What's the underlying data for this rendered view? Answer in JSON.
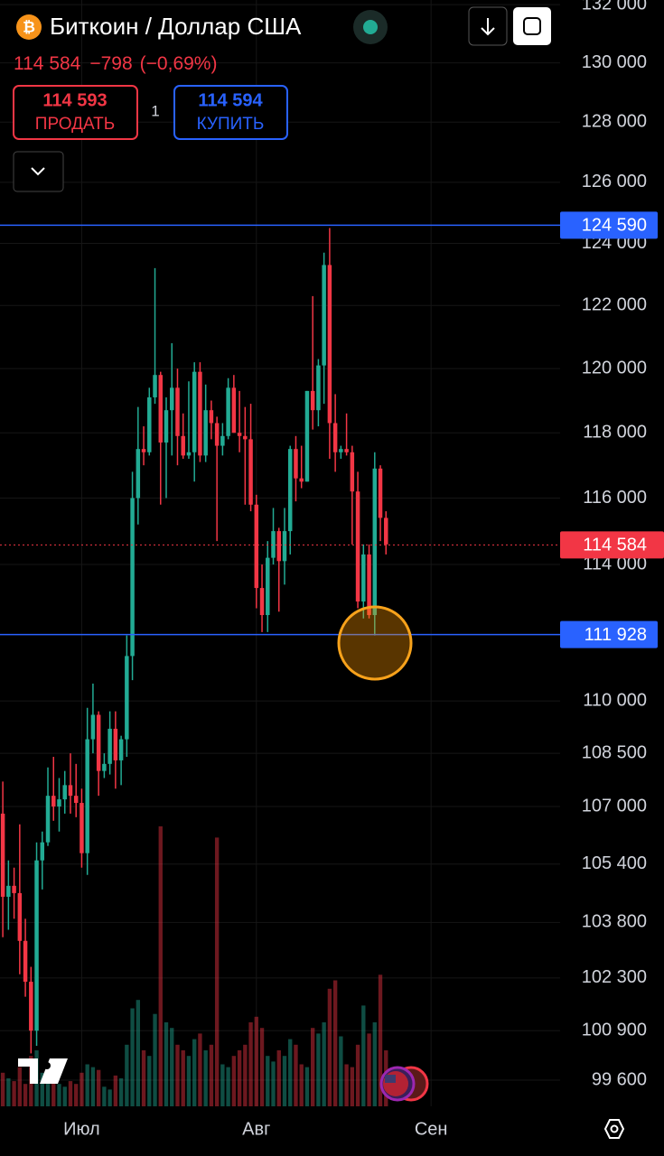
{
  "header": {
    "symbol": "Биткоин / Доллар США",
    "change": "−798",
    "change_pct": "(−0,69%)",
    "sell": {
      "price": "114 593",
      "label": "ПРОДАТЬ"
    },
    "lot": "1",
    "buy": {
      "price": "114 594",
      "label": "КУПИТЬ"
    }
  },
  "chart_data": {
    "type": "candlestick",
    "log_scale": true,
    "grid": true,
    "up_color": "#22ab94",
    "down_color": "#f23645",
    "line_color": "#2962ff",
    "ylim": [
      98920,
      132160
    ],
    "yticks": [
      {
        "value": 132000,
        "label": "132 000"
      },
      {
        "value": 130000,
        "label": "130 000"
      },
      {
        "value": 128000,
        "label": "128 000"
      },
      {
        "value": 126000,
        "label": "126 000"
      },
      {
        "value": 124000,
        "label": "124 000"
      },
      {
        "value": 122000,
        "label": "122 000"
      },
      {
        "value": 120000,
        "label": "120 000"
      },
      {
        "value": 118000,
        "label": "118 000"
      },
      {
        "value": 116000,
        "label": "116 000"
      },
      {
        "value": 114000,
        "label": "114 000"
      },
      {
        "value": 110000,
        "label": "110 000"
      },
      {
        "value": 108500,
        "label": "108 500"
      },
      {
        "value": 107000,
        "label": "107 000"
      },
      {
        "value": 105400,
        "label": "105 400"
      },
      {
        "value": 103800,
        "label": "103 800"
      },
      {
        "value": 102300,
        "label": "102 300"
      },
      {
        "value": 100900,
        "label": "100 900"
      },
      {
        "value": 99600,
        "label": "99 600"
      }
    ],
    "xlim": [
      -0.5,
      98.9
    ],
    "xticks": [
      {
        "value": 14,
        "label": "Июл"
      },
      {
        "value": 45,
        "label": "Авг"
      },
      {
        "value": 76,
        "label": "Сен"
      }
    ],
    "last": {
      "value": 114584,
      "label": "114 584"
    },
    "hlines": [
      {
        "value": 124590,
        "label": "124 590"
      },
      {
        "value": 111928,
        "label": "111 928"
      }
    ],
    "open": [
      106800,
      104500,
      104800,
      104600,
      103300,
      102200,
      100900,
      105500,
      106000,
      107300,
      107000,
      107200,
      107600,
      107300,
      107100,
      105700,
      108900,
      109600,
      108000,
      108200,
      109200,
      108300,
      108900,
      111300,
      116000,
      117500,
      117400,
      119100,
      119800,
      117700,
      118700,
      119400,
      117900,
      117300,
      117400,
      119900,
      117300,
      118700,
      118300,
      117600,
      117900,
      119400,
      118000,
      117900,
      117800,
      115800,
      113300,
      112500,
      114200,
      115000,
      114100,
      115000,
      117500,
      116600,
      116500,
      119300,
      118700,
      120100,
      123300,
      118300,
      117400,
      117500,
      117400,
      116200,
      112900,
      114300,
      112500,
      116900,
      115400
    ],
    "high": [
      107700,
      105500,
      105300,
      106500,
      103900,
      102600,
      106000,
      106300,
      108100,
      108400,
      107800,
      108000,
      108500,
      108200,
      107500,
      109800,
      110500,
      109700,
      108500,
      109700,
      109700,
      109000,
      111900,
      116800,
      118800,
      118200,
      119400,
      123200,
      119900,
      119100,
      120800,
      120000,
      118600,
      119600,
      120200,
      120200,
      119500,
      119000,
      118500,
      118300,
      119700,
      119800,
      119300,
      118800,
      118900,
      116100,
      114000,
      114700,
      115700,
      115100,
      115700,
      117600,
      117900,
      117600,
      119300,
      122300,
      120300,
      123700,
      124500,
      119200,
      117600,
      118600,
      117600,
      116800,
      114600,
      114600,
      117400,
      117000,
      115600
    ],
    "low": [
      103400,
      103600,
      103900,
      102400,
      101800,
      100300,
      100500,
      104700,
      105900,
      106600,
      106300,
      106800,
      106800,
      106700,
      105300,
      105100,
      108500,
      107300,
      107800,
      107900,
      107500,
      107600,
      108400,
      110600,
      115200,
      117000,
      117300,
      118900,
      115800,
      116000,
      117300,
      117000,
      117200,
      117200,
      116500,
      117100,
      117100,
      117800,
      114700,
      117300,
      117800,
      118000,
      117400,
      115800,
      115600,
      112700,
      112000,
      112000,
      114000,
      112600,
      113400,
      114300,
      115900,
      116300,
      116500,
      118100,
      118200,
      118900,
      117200,
      116800,
      117200,
      117300,
      114600,
      112700,
      112400,
      112400,
      111900,
      114700,
      114300
    ],
    "close": [
      104500,
      104800,
      104600,
      103300,
      102200,
      100900,
      105500,
      106000,
      107300,
      107000,
      107200,
      107600,
      107300,
      107100,
      105700,
      108900,
      109600,
      108000,
      108200,
      109200,
      108300,
      108900,
      111300,
      116000,
      117500,
      117400,
      119100,
      119800,
      117700,
      118700,
      119400,
      117900,
      117300,
      117400,
      119900,
      117300,
      118700,
      118300,
      117600,
      117900,
      119400,
      118000,
      117900,
      117800,
      115800,
      113300,
      112500,
      114200,
      115000,
      114100,
      115000,
      117500,
      116600,
      116500,
      119300,
      118700,
      120100,
      123300,
      118300,
      117400,
      117500,
      117400,
      116200,
      112900,
      114300,
      112500,
      116900,
      115400,
      114600
    ],
    "volume": [
      12,
      10,
      9,
      14,
      8,
      18,
      20,
      12,
      11,
      10,
      8,
      7,
      9,
      8,
      12,
      15,
      14,
      13,
      7,
      6,
      11,
      10,
      22,
      35,
      38,
      20,
      18,
      33,
      100,
      30,
      28,
      22,
      20,
      18,
      24,
      26,
      20,
      22,
      96,
      15,
      14,
      18,
      20,
      22,
      30,
      32,
      28,
      18,
      16,
      20,
      18,
      24,
      22,
      15,
      14,
      28,
      26,
      30,
      42,
      45,
      25,
      15,
      14,
      22,
      36,
      26,
      30,
      47,
      20
    ]
  }
}
